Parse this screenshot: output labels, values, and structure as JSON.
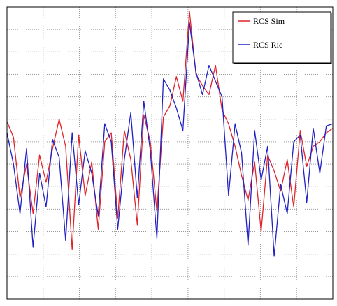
{
  "chart_data": {
    "type": "line",
    "title": "",
    "xlabel": "",
    "ylabel": "",
    "x_range": [
      0,
      100
    ],
    "y_range": [
      0,
      13
    ],
    "grid": true,
    "legend": "top-right",
    "x": [
      0,
      2,
      4,
      6,
      8,
      10,
      12,
      14,
      16,
      18,
      20,
      22,
      24,
      26,
      28,
      30,
      32,
      34,
      36,
      38,
      40,
      42,
      44,
      46,
      48,
      50,
      52,
      54,
      56,
      58,
      60,
      62,
      64,
      66,
      68,
      70,
      72,
      74,
      76,
      78,
      80,
      82,
      84,
      86,
      88,
      90,
      92,
      94,
      96,
      98,
      100
    ],
    "series": [
      {
        "name": "RCS Sim",
        "color": "#e0242a",
        "values": [
          7.9,
          7.2,
          4.5,
          6.0,
          3.8,
          6.4,
          5.2,
          6.7,
          8.0,
          6.8,
          2.2,
          7.3,
          4.6,
          6.1,
          3.1,
          7.0,
          7.4,
          3.6,
          7.5,
          6.2,
          3.3,
          8.2,
          7.0,
          3.9,
          8.1,
          8.6,
          9.9,
          8.8,
          12.8,
          10.0,
          9.5,
          9.1,
          10.4,
          8.4,
          7.8,
          6.8,
          5.5,
          4.4,
          6.1,
          3.0,
          6.4,
          5.7,
          4.8,
          6.2,
          4.1,
          7.5,
          5.9,
          6.8,
          7.0,
          7.4,
          7.6
        ]
      },
      {
        "name": "RCS Ric",
        "color": "#2121c4",
        "values": [
          7.4,
          6.0,
          3.8,
          6.7,
          2.3,
          5.6,
          4.1,
          7.1,
          6.3,
          2.6,
          7.4,
          4.2,
          6.6,
          5.6,
          3.7,
          7.8,
          7.0,
          3.1,
          6.2,
          8.3,
          4.5,
          8.8,
          6.6,
          2.7,
          9.8,
          9.3,
          8.5,
          7.5,
          12.3,
          10.1,
          9.1,
          10.4,
          9.7,
          9.0,
          4.6,
          7.8,
          6.5,
          2.4,
          7.5,
          5.3,
          6.8,
          1.9,
          5.1,
          3.8,
          7.0,
          7.3,
          4.3,
          7.6,
          5.6,
          7.7,
          7.8
        ]
      }
    ]
  }
}
